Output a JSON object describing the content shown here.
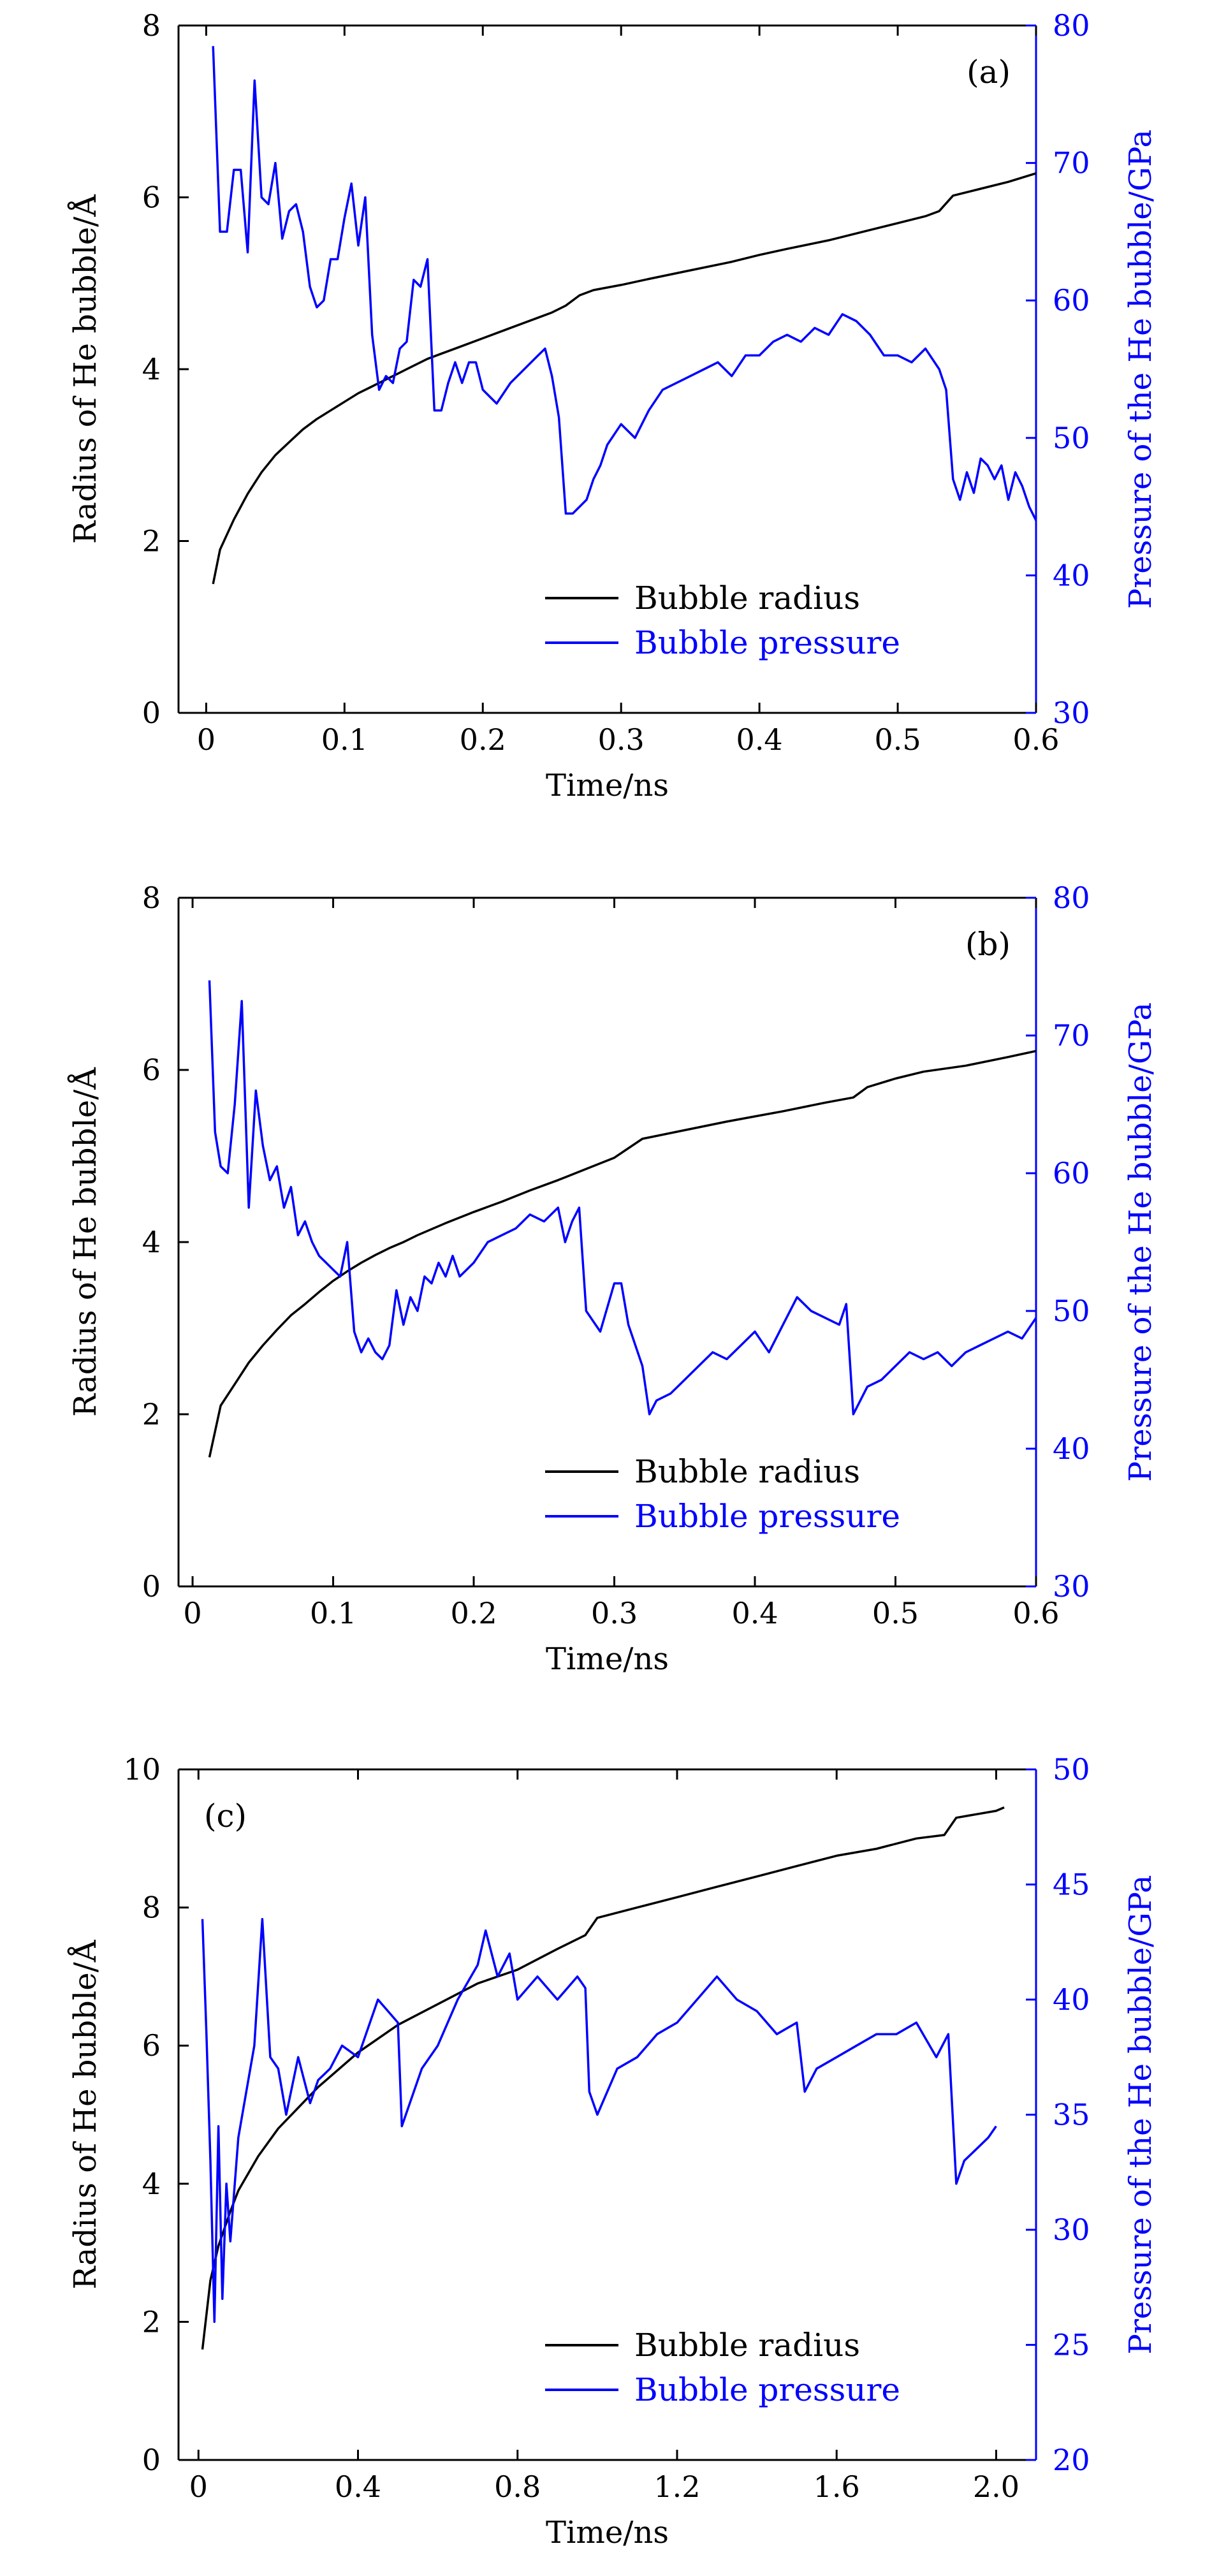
{
  "chart_data": [
    {
      "type": "line",
      "panel_label": "(a)",
      "xlabel": "Time/ns",
      "ylabel": "Radius of He bubble/Å",
      "y2label": "Pressure of the He bubble/GPa",
      "xlim": [
        -0.02,
        0.6
      ],
      "ylim": [
        0,
        8
      ],
      "y2lim": [
        30,
        80
      ],
      "xticks": [
        0,
        0.1,
        0.2,
        0.3,
        0.4,
        0.5,
        0.6
      ],
      "xtick_labels": [
        "0",
        "0.1",
        "0.2",
        "0.3",
        "0.4",
        "0.5",
        "0.6"
      ],
      "yticks": [
        0,
        2,
        4,
        6,
        8
      ],
      "ytick_labels": [
        "0",
        "2",
        "4",
        "6",
        "8"
      ],
      "y2ticks": [
        30,
        40,
        50,
        60,
        70,
        80
      ],
      "y2tick_labels": [
        "30",
        "40",
        "50",
        "60",
        "70",
        "80"
      ],
      "legend_position": "lower-right",
      "colors": {
        "radius": "#000000",
        "pressure": "#0000ff"
      },
      "series": [
        {
          "name": "Bubble radius",
          "axis": "left",
          "x": [
            0.005,
            0.01,
            0.02,
            0.03,
            0.04,
            0.05,
            0.06,
            0.07,
            0.08,
            0.09,
            0.1,
            0.11,
            0.12,
            0.13,
            0.14,
            0.15,
            0.16,
            0.17,
            0.18,
            0.2,
            0.22,
            0.24,
            0.25,
            0.26,
            0.27,
            0.28,
            0.3,
            0.32,
            0.35,
            0.38,
            0.4,
            0.42,
            0.45,
            0.48,
            0.5,
            0.52,
            0.53,
            0.54,
            0.56,
            0.58,
            0.6
          ],
          "values": [
            1.5,
            1.9,
            2.25,
            2.55,
            2.8,
            3.0,
            3.15,
            3.3,
            3.42,
            3.52,
            3.62,
            3.72,
            3.8,
            3.88,
            3.96,
            4.04,
            4.12,
            4.18,
            4.24,
            4.36,
            4.48,
            4.6,
            4.66,
            4.74,
            4.86,
            4.92,
            4.98,
            5.05,
            5.15,
            5.25,
            5.33,
            5.4,
            5.5,
            5.62,
            5.7,
            5.78,
            5.84,
            6.02,
            6.1,
            6.18,
            6.28
          ]
        },
        {
          "name": "Bubble pressure",
          "axis": "right",
          "x": [
            0.005,
            0.01,
            0.015,
            0.02,
            0.025,
            0.03,
            0.035,
            0.04,
            0.045,
            0.05,
            0.055,
            0.06,
            0.065,
            0.07,
            0.075,
            0.08,
            0.085,
            0.09,
            0.095,
            0.1,
            0.105,
            0.11,
            0.115,
            0.12,
            0.125,
            0.13,
            0.135,
            0.14,
            0.145,
            0.15,
            0.155,
            0.16,
            0.165,
            0.17,
            0.175,
            0.18,
            0.185,
            0.19,
            0.195,
            0.2,
            0.21,
            0.22,
            0.23,
            0.24,
            0.245,
            0.25,
            0.255,
            0.26,
            0.265,
            0.27,
            0.275,
            0.28,
            0.285,
            0.29,
            0.3,
            0.31,
            0.32,
            0.33,
            0.34,
            0.35,
            0.36,
            0.37,
            0.38,
            0.39,
            0.4,
            0.41,
            0.42,
            0.43,
            0.44,
            0.45,
            0.46,
            0.47,
            0.48,
            0.49,
            0.5,
            0.51,
            0.52,
            0.53,
            0.535,
            0.54,
            0.545,
            0.55,
            0.555,
            0.56,
            0.565,
            0.57,
            0.575,
            0.58,
            0.585,
            0.59,
            0.595,
            0.6
          ],
          "values": [
            78.5,
            65,
            65,
            69.5,
            69.5,
            63.5,
            76,
            67.5,
            67,
            70,
            64.5,
            66.5,
            67,
            65,
            61,
            59.5,
            60,
            63,
            63,
            66,
            68.5,
            64,
            67.5,
            57.5,
            53.5,
            54.5,
            54,
            56.5,
            57,
            61.5,
            61,
            63,
            52,
            52,
            54,
            55.5,
            54,
            55.5,
            55.5,
            53.5,
            52.5,
            54,
            55,
            56,
            56.5,
            54.5,
            51.5,
            44.5,
            44.5,
            45,
            45.5,
            47,
            48,
            49.5,
            51,
            50,
            52,
            53.5,
            54,
            54.5,
            55,
            55.5,
            54.5,
            56,
            56,
            57,
            57.5,
            57,
            58,
            57.5,
            59,
            58.5,
            57.5,
            56,
            56,
            55.5,
            56.5,
            55,
            53.5,
            47,
            45.5,
            47.5,
            46,
            48.5,
            48,
            47,
            48,
            45.5,
            47.5,
            46.5,
            45,
            44
          ]
        }
      ]
    },
    {
      "type": "line",
      "panel_label": "(b)",
      "xlabel": "Time/ns",
      "ylabel": "Radius of He bubble/Å",
      "y2label": "Pressure of the He bubble/GPa",
      "xlim": [
        -0.01,
        0.6
      ],
      "ylim": [
        0,
        8
      ],
      "y2lim": [
        30,
        80
      ],
      "xticks": [
        0,
        0.1,
        0.2,
        0.3,
        0.4,
        0.5,
        0.6
      ],
      "xtick_labels": [
        "0",
        "0.1",
        "0.2",
        "0.3",
        "0.4",
        "0.5",
        "0.6"
      ],
      "yticks": [
        0,
        2,
        4,
        6,
        8
      ],
      "ytick_labels": [
        "0",
        "2",
        "4",
        "6",
        "8"
      ],
      "y2ticks": [
        30,
        40,
        50,
        60,
        70,
        80
      ],
      "y2tick_labels": [
        "30",
        "40",
        "50",
        "60",
        "70",
        "80"
      ],
      "legend_position": "lower-right",
      "colors": {
        "radius": "#000000",
        "pressure": "#0000ff"
      },
      "series": [
        {
          "name": "Bubble radius",
          "axis": "left",
          "x": [
            0.012,
            0.02,
            0.03,
            0.04,
            0.05,
            0.06,
            0.07,
            0.08,
            0.09,
            0.1,
            0.11,
            0.12,
            0.13,
            0.14,
            0.15,
            0.16,
            0.18,
            0.2,
            0.22,
            0.24,
            0.26,
            0.28,
            0.3,
            0.32,
            0.35,
            0.38,
            0.4,
            0.42,
            0.45,
            0.47,
            0.48,
            0.5,
            0.52,
            0.55,
            0.58,
            0.6
          ],
          "values": [
            1.5,
            2.1,
            2.35,
            2.6,
            2.8,
            2.98,
            3.15,
            3.28,
            3.42,
            3.55,
            3.66,
            3.76,
            3.85,
            3.93,
            4.0,
            4.08,
            4.22,
            4.35,
            4.47,
            4.6,
            4.72,
            4.85,
            4.98,
            5.2,
            5.3,
            5.4,
            5.46,
            5.52,
            5.62,
            5.68,
            5.8,
            5.9,
            5.98,
            6.05,
            6.15,
            6.22
          ]
        },
        {
          "name": "Bubble pressure",
          "axis": "right",
          "x": [
            0.012,
            0.016,
            0.02,
            0.025,
            0.03,
            0.035,
            0.04,
            0.045,
            0.05,
            0.055,
            0.06,
            0.065,
            0.07,
            0.075,
            0.08,
            0.085,
            0.09,
            0.095,
            0.1,
            0.105,
            0.11,
            0.115,
            0.12,
            0.125,
            0.13,
            0.135,
            0.14,
            0.145,
            0.15,
            0.155,
            0.16,
            0.165,
            0.17,
            0.175,
            0.18,
            0.185,
            0.19,
            0.195,
            0.2,
            0.21,
            0.22,
            0.23,
            0.24,
            0.25,
            0.26,
            0.265,
            0.27,
            0.275,
            0.28,
            0.29,
            0.3,
            0.305,
            0.31,
            0.32,
            0.325,
            0.33,
            0.34,
            0.35,
            0.36,
            0.37,
            0.38,
            0.39,
            0.4,
            0.41,
            0.42,
            0.43,
            0.44,
            0.45,
            0.46,
            0.465,
            0.47,
            0.48,
            0.49,
            0.5,
            0.51,
            0.52,
            0.53,
            0.54,
            0.55,
            0.56,
            0.57,
            0.58,
            0.59,
            0.6
          ],
          "values": [
            74,
            63,
            60.5,
            60,
            65,
            72.5,
            57.5,
            66,
            62,
            59.5,
            60.5,
            57.5,
            59,
            55.5,
            56.5,
            55,
            54,
            53.5,
            53,
            52.5,
            55,
            48.5,
            47,
            48,
            47,
            46.5,
            47.5,
            51.5,
            49,
            51,
            50,
            52.5,
            52,
            53.5,
            52.5,
            54,
            52.5,
            53,
            53.5,
            55,
            55.5,
            56,
            57,
            56.5,
            57.5,
            55,
            56.5,
            57.5,
            50,
            48.5,
            52,
            52,
            49,
            46,
            42.5,
            43.5,
            44,
            45,
            46,
            47,
            46.5,
            47.5,
            48.5,
            47,
            49,
            51,
            50,
            49.5,
            49,
            50.5,
            42.5,
            44.5,
            45,
            46,
            47,
            46.5,
            47,
            46,
            47,
            47.5,
            48,
            48.5,
            48,
            49.5
          ]
        }
      ]
    },
    {
      "type": "line",
      "panel_label": "(c)",
      "xlabel": "Time/ns",
      "ylabel": "Radius of He bubble/Å",
      "y2label": "Pressure of the He bubble/GPa",
      "xlim": [
        -0.05,
        2.1
      ],
      "ylim": [
        0,
        10
      ],
      "y2lim": [
        20,
        50
      ],
      "xticks": [
        0,
        0.4,
        0.8,
        1.2,
        1.6,
        2.0
      ],
      "xtick_labels": [
        "0",
        "0.4",
        "0.8",
        "1.2",
        "1.6",
        "2.0"
      ],
      "yticks": [
        0,
        2,
        4,
        6,
        8,
        10
      ],
      "ytick_labels": [
        "0",
        "2",
        "4",
        "6",
        "8",
        "10"
      ],
      "y2ticks": [
        20,
        25,
        30,
        35,
        40,
        45,
        50
      ],
      "y2tick_labels": [
        "20",
        "25",
        "30",
        "35",
        "40",
        "45",
        "50"
      ],
      "legend_position": "lower-right",
      "colors": {
        "radius": "#000000",
        "pressure": "#0000ff"
      },
      "series": [
        {
          "name": "Bubble radius",
          "axis": "left",
          "x": [
            0.01,
            0.03,
            0.05,
            0.08,
            0.1,
            0.15,
            0.2,
            0.3,
            0.4,
            0.5,
            0.6,
            0.7,
            0.8,
            0.9,
            0.97,
            1.0,
            1.1,
            1.2,
            1.3,
            1.4,
            1.5,
            1.6,
            1.7,
            1.8,
            1.87,
            1.9,
            2.0,
            2.02
          ],
          "values": [
            1.6,
            2.6,
            3.1,
            3.6,
            3.9,
            4.4,
            4.8,
            5.4,
            5.9,
            6.3,
            6.6,
            6.9,
            7.1,
            7.4,
            7.6,
            7.85,
            8.0,
            8.15,
            8.3,
            8.45,
            8.6,
            8.75,
            8.85,
            9.0,
            9.05,
            9.3,
            9.4,
            9.45
          ]
        },
        {
          "name": "Bubble pressure",
          "axis": "right",
          "x": [
            0.01,
            0.02,
            0.03,
            0.04,
            0.05,
            0.06,
            0.07,
            0.08,
            0.1,
            0.12,
            0.14,
            0.16,
            0.18,
            0.2,
            0.22,
            0.25,
            0.28,
            0.3,
            0.33,
            0.36,
            0.4,
            0.45,
            0.5,
            0.51,
            0.53,
            0.56,
            0.6,
            0.65,
            0.7,
            0.72,
            0.75,
            0.78,
            0.8,
            0.85,
            0.9,
            0.95,
            0.97,
            0.98,
            1.0,
            1.05,
            1.1,
            1.15,
            1.2,
            1.25,
            1.3,
            1.35,
            1.4,
            1.45,
            1.5,
            1.52,
            1.55,
            1.6,
            1.65,
            1.7,
            1.75,
            1.8,
            1.85,
            1.88,
            1.9,
            1.92,
            1.95,
            1.98,
            2.0
          ],
          "values": [
            43.5,
            38.5,
            33,
            26,
            34.5,
            27,
            32,
            29.5,
            34,
            36,
            38,
            43.5,
            37.5,
            37,
            35,
            37.5,
            35.5,
            36.5,
            37,
            38,
            37.5,
            40,
            39,
            34.5,
            35.5,
            37,
            38,
            40,
            41.5,
            43,
            41,
            42,
            40,
            41,
            40,
            41,
            40.5,
            36,
            35,
            37,
            37.5,
            38.5,
            39,
            40,
            41,
            40,
            39.5,
            38.5,
            39,
            36,
            37,
            37.5,
            38,
            38.5,
            38.5,
            39,
            37.5,
            38.5,
            32,
            33,
            33.5,
            34,
            34.5
          ]
        }
      ]
    }
  ]
}
